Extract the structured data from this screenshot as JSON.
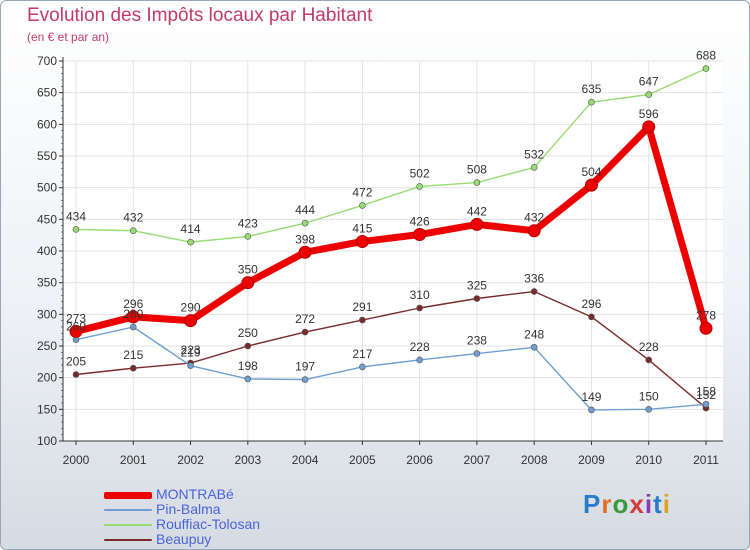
{
  "header": {
    "title": "Evolution des Impôts locaux par Habitant",
    "subtitle": "(en € et par an)"
  },
  "logo": {
    "text": "Proxiti"
  },
  "chart_data": {
    "type": "line",
    "title": "Evolution des Impôts locaux par Habitant",
    "subtitle": "(en € et par an)",
    "xlabel": "",
    "ylabel": "",
    "ylim": [
      100,
      700
    ],
    "yticks": [
      100,
      150,
      200,
      250,
      300,
      350,
      400,
      450,
      500,
      550,
      600,
      650,
      700
    ],
    "grid": true,
    "legend_position": "bottom-left",
    "categories": [
      "2000",
      "2001",
      "2002",
      "2003",
      "2004",
      "2005",
      "2006",
      "2007",
      "2008",
      "2009",
      "2010",
      "2011"
    ],
    "series": [
      {
        "name": "MONTRABé",
        "color": "#ee0000",
        "values": [
          273,
          296,
          290,
          350,
          398,
          415,
          426,
          442,
          432,
          504,
          596,
          278
        ]
      },
      {
        "name": "Pin-Balma",
        "color": "#6f9fd2",
        "values": [
          260,
          280,
          219,
          198,
          197,
          217,
          228,
          238,
          248,
          149,
          150,
          158
        ]
      },
      {
        "name": "Rouffiac-Tolosan",
        "color": "#96dc72",
        "values": [
          434,
          432,
          414,
          423,
          444,
          472,
          502,
          508,
          532,
          635,
          647,
          688
        ]
      },
      {
        "name": "Beaupuy",
        "color": "#7b2a2a",
        "values": [
          205,
          215,
          223,
          250,
          272,
          291,
          310,
          325,
          336,
          296,
          228,
          152
        ]
      }
    ]
  }
}
